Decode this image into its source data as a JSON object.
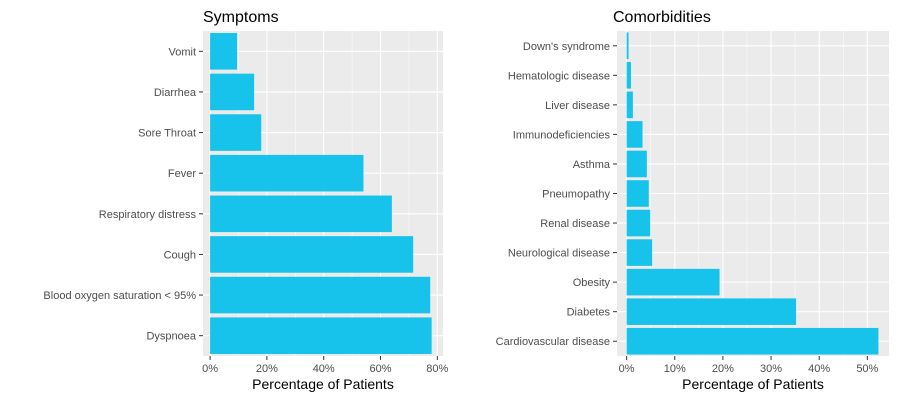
{
  "chart_data": [
    {
      "type": "bar",
      "orientation": "horizontal",
      "title": "Symptoms",
      "xlabel": "Percentage of Patients",
      "ylabel": "",
      "categories": [
        "Dyspnoea",
        "Blood oxygen saturation < 95%",
        "Cough",
        "Respiratory distress",
        "Fever",
        "Sore Throat",
        "Diarrhea",
        "Vomit"
      ],
      "values": [
        78,
        77.5,
        71.5,
        64,
        54,
        18,
        15.5,
        9.5
      ],
      "xlim": [
        -2.5,
        82
      ],
      "xticks": [
        0,
        20,
        40,
        60,
        80
      ],
      "xtick_labels": [
        "0%",
        "20%",
        "40%",
        "60%",
        "80%"
      ],
      "grid": true,
      "bar_color": "#17c3ea"
    },
    {
      "type": "bar",
      "orientation": "horizontal",
      "title": "Comorbidities",
      "xlabel": "Percentage of Patients",
      "ylabel": "",
      "categories": [
        "Cardiovascular disease",
        "Diabetes",
        "Obesity",
        "Neurological disease",
        "Renal disease",
        "Pneumopathy",
        "Asthma",
        "Immunodeficiencies",
        "Liver disease",
        "Hematologic disease",
        "Down's syndrome"
      ],
      "values": [
        52.3,
        35.2,
        19.3,
        5.3,
        4.9,
        4.6,
        4.2,
        3.3,
        1.3,
        0.9,
        0.4
      ],
      "xlim": [
        -2,
        54.5
      ],
      "xticks": [
        0,
        10,
        20,
        30,
        40,
        50
      ],
      "xtick_labels": [
        "0%",
        "10%",
        "20%",
        "30%",
        "40%",
        "50%"
      ],
      "grid": true,
      "bar_color": "#17c3ea"
    }
  ],
  "colors": {
    "panel_bg": "#ebebeb",
    "grid_major": "#ffffff",
    "bar": "#17c3ea",
    "tick_text": "#4d4d4d"
  }
}
